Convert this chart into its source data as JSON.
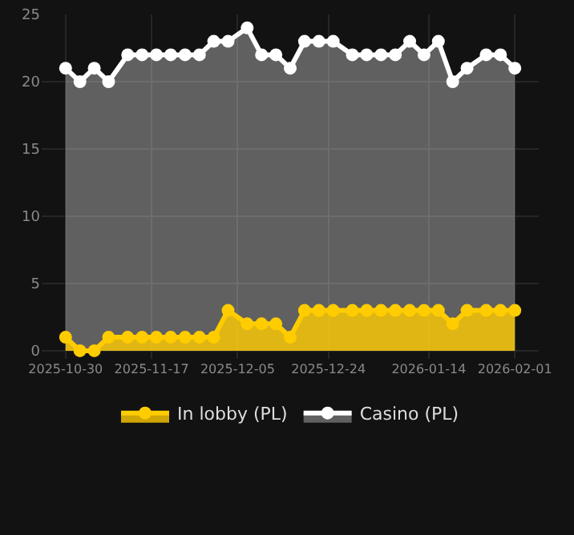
{
  "chart_data": {
    "type": "area",
    "x": [
      "2025-10-30",
      "2025-11-02",
      "2025-11-05",
      "2025-11-08",
      "2025-11-12",
      "2025-11-15",
      "2025-11-18",
      "2025-11-21",
      "2025-11-24",
      "2025-11-27",
      "2025-11-30",
      "2025-12-03",
      "2025-12-07",
      "2025-12-10",
      "2025-12-13",
      "2025-12-16",
      "2025-12-19",
      "2025-12-22",
      "2025-12-25",
      "2025-12-29",
      "2026-01-01",
      "2026-01-04",
      "2026-01-07",
      "2026-01-10",
      "2026-01-13",
      "2026-01-16",
      "2026-01-19",
      "2026-01-22",
      "2026-01-26",
      "2026-01-29",
      "2026-02-01"
    ],
    "series": [
      {
        "name": "In lobby (PL)",
        "color": "#ffcc00",
        "values": [
          1,
          0,
          0,
          1,
          1,
          1,
          1,
          1,
          1,
          1,
          1,
          3,
          2,
          2,
          2,
          1,
          3,
          3,
          3,
          3,
          3,
          3,
          3,
          3,
          3,
          3,
          2,
          3,
          3,
          3,
          3
        ]
      },
      {
        "name": "Casino (PL)",
        "color": "#ffffff",
        "values": [
          21,
          20,
          21,
          20,
          22,
          22,
          22,
          22,
          22,
          22,
          23,
          23,
          24,
          22,
          22,
          21,
          23,
          23,
          23,
          22,
          22,
          22,
          22,
          23,
          22,
          23,
          20,
          21,
          22,
          22,
          21
        ]
      }
    ],
    "xlim": [
      "2025-10-25",
      "2026-02-06"
    ],
    "xticks": [
      "2025-10-30",
      "2025-11-17",
      "2025-12-05",
      "2025-12-24",
      "2026-01-14",
      "2026-02-01"
    ],
    "ylim": [
      -0.6,
      25
    ],
    "yticks": [
      0,
      5,
      10,
      15,
      20,
      25
    ],
    "grid": true,
    "legend": "bottom",
    "marker": "circle",
    "line_style": "solid"
  }
}
